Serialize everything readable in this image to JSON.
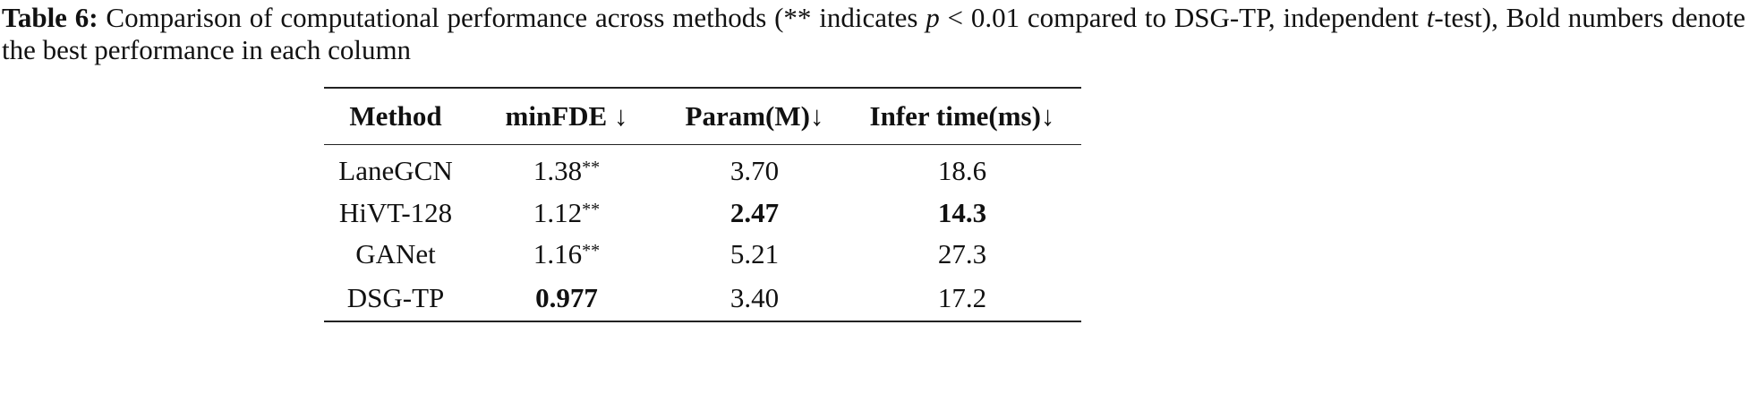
{
  "caption": {
    "label": "Table 6:",
    "segments": [
      "Comparison of computational performance across methods (** indicates ",
      "p",
      " < 0.01 compared to DSG-TP, independent ",
      "t",
      "-test), Bold numbers denote the best performance in each column"
    ]
  },
  "table": {
    "headers": [
      "Method",
      "minFDE ↓",
      "Param(M)↓",
      "Infer time(ms)↓"
    ],
    "rows": [
      [
        "LaneGCN",
        "1.38**",
        "3.70",
        "18.6"
      ],
      [
        "HiVT-128",
        "1.12**",
        "2.47",
        "14.3"
      ],
      [
        "GANet",
        "1.16**",
        "5.21",
        "27.3"
      ],
      [
        "DSG-TP",
        "0.977",
        "3.40",
        "17.2"
      ]
    ],
    "bold_cells": [
      [
        1,
        2
      ],
      [
        1,
        3
      ],
      [
        3,
        1
      ]
    ]
  }
}
